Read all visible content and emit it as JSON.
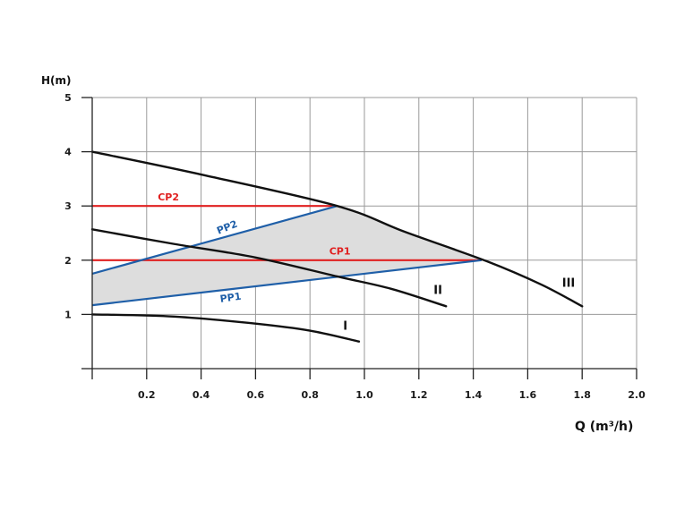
{
  "chart_data": {
    "type": "line",
    "title": "",
    "ylabel": "H(m)",
    "xlabel": "Q (m³/h)",
    "xlim": [
      0,
      2.0
    ],
    "ylim": [
      0,
      5
    ],
    "grid": true,
    "xticks": [
      "0.2",
      "0.4",
      "0.6",
      "0.8",
      "1.0",
      "1.2",
      "1.4",
      "1.6",
      "1.8",
      "2.0"
    ],
    "yticks": [
      "1",
      "2",
      "3",
      "4",
      "5"
    ],
    "curves": [
      {
        "name": "I",
        "color": "#111111",
        "points": [
          [
            0,
            1.0
          ],
          [
            0.3,
            0.96
          ],
          [
            0.6,
            0.83
          ],
          [
            0.8,
            0.7
          ],
          [
            0.98,
            0.5
          ]
        ]
      },
      {
        "name": "II",
        "color": "#111111",
        "points": [
          [
            0,
            2.57
          ],
          [
            0.3,
            2.3
          ],
          [
            0.6,
            2.05
          ],
          [
            0.9,
            1.7
          ],
          [
            1.1,
            1.47
          ],
          [
            1.3,
            1.15
          ]
        ]
      },
      {
        "name": "III",
        "color": "#111111",
        "points": [
          [
            0,
            4.0
          ],
          [
            0.4,
            3.58
          ],
          [
            0.9,
            3.0
          ],
          [
            1.15,
            2.52
          ],
          [
            1.45,
            1.98
          ],
          [
            1.65,
            1.55
          ],
          [
            1.8,
            1.15
          ]
        ]
      }
    ],
    "control_lines": [
      {
        "name": "CP2",
        "color": "#e02020",
        "points": [
          [
            0,
            3.0
          ],
          [
            0.9,
            3.0
          ]
        ]
      },
      {
        "name": "CP1",
        "color": "#e02020",
        "points": [
          [
            0,
            2.0
          ],
          [
            1.43,
            2.0
          ]
        ]
      },
      {
        "name": "PP2",
        "color": "#1f5fa8",
        "points": [
          [
            0,
            1.75
          ],
          [
            0.9,
            3.0
          ]
        ]
      },
      {
        "name": "PP1",
        "color": "#1f5fa8",
        "points": [
          [
            0,
            1.17
          ],
          [
            1.43,
            2.0
          ]
        ]
      }
    ],
    "shaded_region": {
      "color": "#dddddd",
      "points": [
        [
          0,
          1.17
        ],
        [
          0,
          1.75
        ],
        [
          0.9,
          3.0
        ],
        [
          1.15,
          2.52
        ],
        [
          1.43,
          2.0
        ]
      ]
    }
  }
}
